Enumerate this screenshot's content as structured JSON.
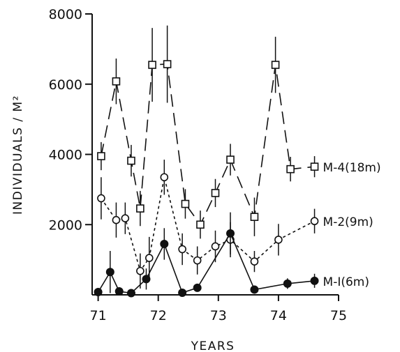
{
  "chart_data": {
    "type": "line",
    "xlabel": "YEARS",
    "ylabel": "INDIVIDUALS / M²",
    "xlim": [
      70.9,
      75
    ],
    "ylim": [
      0,
      8000
    ],
    "x_ticks": [
      71,
      72,
      73,
      74,
      75
    ],
    "y_ticks": [
      2000,
      4000,
      6000,
      8000
    ],
    "grid": false,
    "series": [
      {
        "name": "M-4(18m)",
        "marker": "open-square",
        "line_style": "long-dash",
        "points": [
          {
            "x": 71.05,
            "y": 3950,
            "err": 400
          },
          {
            "x": 71.3,
            "y": 6080,
            "err": 650
          },
          {
            "x": 71.55,
            "y": 3820,
            "err": 450
          },
          {
            "x": 71.7,
            "y": 2460,
            "err": 500
          },
          {
            "x": 71.9,
            "y": 6550,
            "err": 1050
          },
          {
            "x": 72.15,
            "y": 6570,
            "err": 1100
          },
          {
            "x": 72.45,
            "y": 2590,
            "err": 420
          },
          {
            "x": 72.7,
            "y": 2000,
            "err": 400
          },
          {
            "x": 72.95,
            "y": 2900,
            "err": 400
          },
          {
            "x": 73.2,
            "y": 3850,
            "err": 450
          },
          {
            "x": 73.6,
            "y": 2220,
            "err": 550
          },
          {
            "x": 73.95,
            "y": 6550,
            "err": 800
          },
          {
            "x": 74.2,
            "y": 3580,
            "err": 350
          },
          {
            "x": 74.6,
            "y": 3650,
            "err": 300
          }
        ]
      },
      {
        "name": "M-2(9m)",
        "marker": "open-circle",
        "line_style": "dotted",
        "points": [
          {
            "x": 71.05,
            "y": 2750,
            "err": 600
          },
          {
            "x": 71.3,
            "y": 2130,
            "err": 500
          },
          {
            "x": 71.45,
            "y": 2180,
            "err": 450
          },
          {
            "x": 71.7,
            "y": 680,
            "err": 500
          },
          {
            "x": 71.85,
            "y": 1050,
            "err": 600
          },
          {
            "x": 72.1,
            "y": 3350,
            "err": 500
          },
          {
            "x": 72.4,
            "y": 1300,
            "err": 450
          },
          {
            "x": 72.65,
            "y": 980,
            "err": 400
          },
          {
            "x": 72.95,
            "y": 1380,
            "err": 450
          },
          {
            "x": 73.2,
            "y": 1570,
            "err": 500
          },
          {
            "x": 73.6,
            "y": 950,
            "err": 300
          },
          {
            "x": 74.0,
            "y": 1570,
            "err": 450
          },
          {
            "x": 74.6,
            "y": 2100,
            "err": 350
          }
        ]
      },
      {
        "name": "M-I(6m)",
        "marker": "filled-circle",
        "line_style": "solid",
        "points": [
          {
            "x": 71.0,
            "y": 80,
            "err": 0
          },
          {
            "x": 71.2,
            "y": 650,
            "err": 600
          },
          {
            "x": 71.35,
            "y": 100,
            "err": 0
          },
          {
            "x": 71.55,
            "y": 50,
            "err": 0
          },
          {
            "x": 71.8,
            "y": 450,
            "err": 300
          },
          {
            "x": 72.1,
            "y": 1450,
            "err": 450
          },
          {
            "x": 72.4,
            "y": 60,
            "err": 0
          },
          {
            "x": 72.65,
            "y": 200,
            "err": 0
          },
          {
            "x": 73.2,
            "y": 1750,
            "err": 600
          },
          {
            "x": 73.6,
            "y": 150,
            "err": 0
          },
          {
            "x": 74.15,
            "y": 320,
            "err": 150
          },
          {
            "x": 74.6,
            "y": 400,
            "err": 200
          }
        ]
      }
    ]
  }
}
